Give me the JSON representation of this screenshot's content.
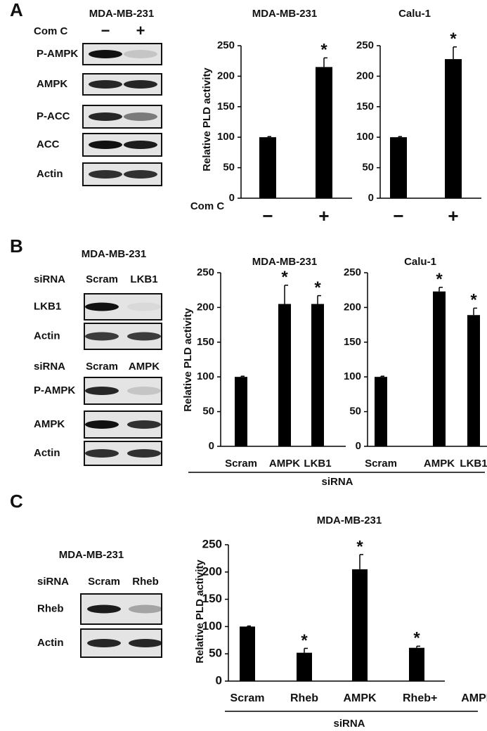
{
  "panel_labels": [
    "A",
    "B",
    "C"
  ],
  "blots": [
    {
      "cell_line": "MDA-MB-231",
      "groups": [
        {
          "treatment": "Com C",
          "lanes": [
            "−",
            "+"
          ],
          "rows": [
            "P-AMPK",
            "AMPK",
            "P-ACC",
            "ACC",
            "Actin"
          ]
        }
      ]
    },
    {
      "cell_line": "MDA-MB-231",
      "groups": [
        {
          "treatment": "siRNA",
          "lanes": [
            "Scram",
            "LKB1"
          ],
          "rows": [
            "LKB1",
            "Actin"
          ]
        },
        {
          "treatment": "siRNA",
          "lanes": [
            "Scram",
            "AMPK"
          ],
          "rows": [
            "P-AMPK",
            "AMPK",
            "Actin"
          ]
        }
      ]
    },
    {
      "cell_line": "MDA-MB-231",
      "groups": [
        {
          "treatment": "siRNA",
          "lanes": [
            "Scram",
            "Rheb"
          ],
          "rows": [
            "Rheb",
            "Actin"
          ]
        }
      ]
    }
  ],
  "chart_data": [
    {
      "type": "bar",
      "title": "MDA-MB-231",
      "ylabel": "Relative PLD activity",
      "xlabel": "Com C",
      "categories": [
        "−",
        "+"
      ],
      "values": [
        100,
        215
      ],
      "errors": [
        1,
        15
      ],
      "significance": [
        null,
        "*"
      ],
      "color": "#000000",
      "ylim": [
        0,
        250
      ],
      "yticks": [
        0,
        50,
        100,
        150,
        200,
        250
      ]
    },
    {
      "type": "bar",
      "title": "Calu-1",
      "categories": [
        "−",
        "+"
      ],
      "values": [
        100,
        228
      ],
      "errors": [
        1,
        20
      ],
      "significance": [
        null,
        "*"
      ],
      "color": "#000000",
      "ylim": [
        0,
        250
      ],
      "yticks": [
        0,
        50,
        100,
        150,
        200,
        250
      ]
    },
    {
      "type": "bar",
      "title": "MDA-MB-231",
      "ylabel": "Relative PLD activity",
      "xlabel": "siRNA",
      "categories": [
        "Scram",
        "AMPK",
        "LKB1"
      ],
      "values": [
        100,
        205,
        205
      ],
      "errors": [
        1,
        27,
        12
      ],
      "significance": [
        null,
        "*",
        "*"
      ],
      "color": "#000000",
      "ylim": [
        0,
        250
      ],
      "yticks": [
        0,
        50,
        100,
        150,
        200,
        250
      ]
    },
    {
      "type": "bar",
      "title": "Calu-1",
      "categories": [
        "Scram",
        "AMPK",
        "LKB1"
      ],
      "values": [
        100,
        223,
        189
      ],
      "errors": [
        1,
        6,
        10
      ],
      "significance": [
        null,
        "*",
        "*"
      ],
      "color": "#000000",
      "ylim": [
        0,
        250
      ],
      "yticks": [
        0,
        50,
        100,
        150,
        200,
        250
      ]
    },
    {
      "type": "bar",
      "title": "MDA-MB-231",
      "ylabel": "Relative PLD activity",
      "xlabel": "siRNA",
      "categories": [
        "Scram",
        "Rheb",
        "AMPK",
        "Rheb+ AMPK"
      ],
      "values": [
        100,
        52,
        205,
        61
      ],
      "errors": [
        1,
        8,
        27,
        3
      ],
      "significance": [
        null,
        "*",
        "*",
        "*"
      ],
      "color": "#000000",
      "ylim": [
        0,
        250
      ],
      "yticks": [
        0,
        50,
        100,
        150,
        200,
        250
      ]
    }
  ]
}
